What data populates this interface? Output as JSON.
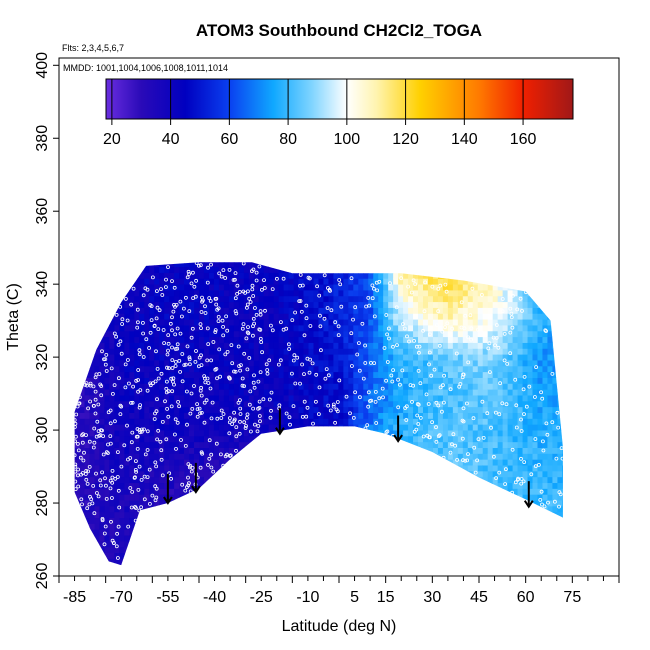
{
  "chart_data": {
    "type": "heatmap",
    "title": "ATOM3 Southbound CH2Cl2_TOGA",
    "subtitle_flights": "Flts: 2,3,4,5,6,7",
    "subtitle_dates": "MMDD: 1001,1004,1006,1008,1011,1014",
    "xlabel": "Latitude (deg N)",
    "ylabel": "Theta (C)",
    "xlim": [
      -90,
      90
    ],
    "ylim": [
      260,
      402
    ],
    "x_tick_labels": [
      "-85",
      "-70",
      "-55",
      "-40",
      "-25",
      "-10",
      "5",
      "15",
      "30",
      "45",
      "60",
      "75"
    ],
    "y_tick_labels": [
      "260",
      "280",
      "300",
      "320",
      "340",
      "360",
      "380",
      "400"
    ],
    "colorbar": {
      "range": [
        18,
        177
      ],
      "tick_labels": [
        "20",
        "40",
        "60",
        "80",
        "100",
        "120",
        "140",
        "160"
      ],
      "colors": [
        "#5a1fd6",
        "#3a0fc0",
        "#1b00b4",
        "#0000c8",
        "#0a2ee8",
        "#0a78f0",
        "#1ab4ff",
        "#7fd4ff",
        "#d8f0ff",
        "#ffffff",
        "#fffbd0",
        "#ffe680",
        "#ffc400",
        "#ff9a00",
        "#ff6000",
        "#f42000",
        "#d40000",
        "#a81818"
      ]
    },
    "color_stops": [
      {
        "v": 18,
        "c": "#6a2ee0"
      },
      {
        "v": 30,
        "c": "#2a0ab8"
      },
      {
        "v": 45,
        "c": "#0000c0"
      },
      {
        "v": 60,
        "c": "#0a40f0"
      },
      {
        "v": 75,
        "c": "#10a8ff"
      },
      {
        "v": 88,
        "c": "#7fd4ff"
      },
      {
        "v": 100,
        "c": "#ffffff"
      },
      {
        "v": 110,
        "c": "#fff4b0"
      },
      {
        "v": 125,
        "c": "#ffd000"
      },
      {
        "v": 145,
        "c": "#ff7a00"
      },
      {
        "v": 160,
        "c": "#f02000"
      },
      {
        "v": 177,
        "c": "#a01818"
      }
    ],
    "data_extent": {
      "lat_min": -85,
      "lat_max": 72,
      "top_theta": [
        {
          "lat": -85,
          "theta": 305
        },
        {
          "lat": -78,
          "theta": 322
        },
        {
          "lat": -70,
          "theta": 335
        },
        {
          "lat": -62,
          "theta": 345
        },
        {
          "lat": -45,
          "theta": 346
        },
        {
          "lat": -28,
          "theta": 346
        },
        {
          "lat": -15,
          "theta": 343
        },
        {
          "lat": 0,
          "theta": 343
        },
        {
          "lat": 20,
          "theta": 343
        },
        {
          "lat": 40,
          "theta": 341
        },
        {
          "lat": 60,
          "theta": 338
        },
        {
          "lat": 68,
          "theta": 330
        },
        {
          "lat": 72,
          "theta": 295
        }
      ],
      "bottom_theta": [
        {
          "lat": -85,
          "theta": 283
        },
        {
          "lat": -80,
          "theta": 273
        },
        {
          "lat": -74,
          "theta": 264
        },
        {
          "lat": -70,
          "theta": 263
        },
        {
          "lat": -64,
          "theta": 278
        },
        {
          "lat": -55,
          "theta": 280
        },
        {
          "lat": -45,
          "theta": 284
        },
        {
          "lat": -35,
          "theta": 292
        },
        {
          "lat": -25,
          "theta": 299
        },
        {
          "lat": -10,
          "theta": 301
        },
        {
          "lat": 5,
          "theta": 301
        },
        {
          "lat": 15,
          "theta": 299
        },
        {
          "lat": 30,
          "theta": 294
        },
        {
          "lat": 45,
          "theta": 287
        },
        {
          "lat": 60,
          "theta": 281
        },
        {
          "lat": 72,
          "theta": 276
        }
      ]
    },
    "field": [
      {
        "lat": -85,
        "values": [
          32,
          32,
          30,
          30,
          30,
          30,
          30,
          30
        ]
      },
      {
        "lat": -70,
        "values": [
          35,
          35,
          38,
          40,
          42,
          42,
          42,
          42
        ]
      },
      {
        "lat": -55,
        "values": [
          30,
          32,
          35,
          40,
          42,
          43,
          44,
          44
        ]
      },
      {
        "lat": -40,
        "values": [
          28,
          30,
          34,
          40,
          42,
          42,
          43,
          43
        ]
      },
      {
        "lat": -25,
        "values": [
          24,
          26,
          30,
          38,
          42,
          42,
          42,
          42
        ]
      },
      {
        "lat": -10,
        "values": [
          36,
          36,
          40,
          44,
          46,
          46,
          47,
          47
        ]
      },
      {
        "lat": 0,
        "values": [
          45,
          45,
          45,
          47,
          48,
          50,
          52,
          52
        ]
      },
      {
        "lat": 10,
        "values": [
          75,
          75,
          72,
          68,
          65,
          64,
          62,
          62
        ]
      },
      {
        "lat": 20,
        "values": [
          82,
          82,
          80,
          78,
          76,
          78,
          95,
          115
        ]
      },
      {
        "lat": 35,
        "values": [
          85,
          85,
          84,
          83,
          82,
          85,
          108,
          125
        ]
      },
      {
        "lat": 50,
        "values": [
          80,
          80,
          81,
          82,
          84,
          88,
          100,
          108
        ]
      },
      {
        "lat": 65,
        "values": [
          80,
          80,
          78,
          76,
          74,
          72,
          78,
          82
        ]
      },
      {
        "lat": 72,
        "values": [
          80,
          80,
          78,
          76,
          74,
          72,
          75,
          78
        ]
      }
    ],
    "field_theta_levels": [
      262,
      275,
      290,
      300,
      310,
      320,
      330,
      346
    ],
    "arrows_lat": [
      -55,
      -46,
      -19,
      19,
      61
    ],
    "arrows_theta": [
      [
        288,
        280
      ],
      [
        291,
        283
      ],
      [
        306,
        299
      ],
      [
        304,
        297
      ],
      [
        286,
        279
      ]
    ]
  }
}
